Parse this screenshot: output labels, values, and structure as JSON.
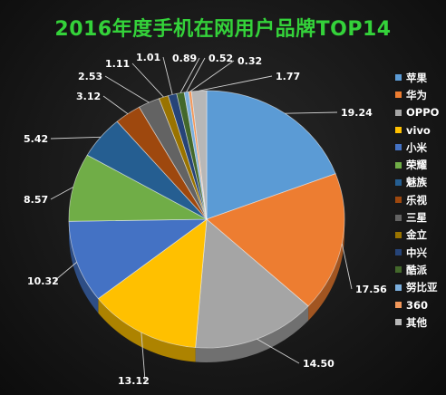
{
  "title": "2016年度手机在网用户品牌TOP14",
  "chart_data": {
    "type": "pie",
    "title": "2016年度手机在网用户品牌TOP14",
    "legend_position": "right",
    "style": "3d",
    "categories": [
      "苹果",
      "华为",
      "OPPO",
      "vivo",
      "小米",
      "荣耀",
      "魅族",
      "乐视",
      "三星",
      "金立",
      "中兴",
      "酷派",
      "努比亚",
      "360",
      "其他"
    ],
    "values": [
      19.24,
      17.56,
      14.5,
      13.12,
      10.32,
      8.57,
      5.42,
      3.12,
      2.53,
      1.11,
      1.01,
      0.89,
      0.52,
      0.32,
      1.77
    ],
    "labels": [
      "19.24",
      "17.56",
      "14.50",
      "13.12",
      "10.32",
      "8.57",
      "5.42",
      "3.12",
      "2.53",
      "1.11",
      "1.01",
      "0.89",
      "0.52",
      "0.32",
      "1.77"
    ],
    "colors": [
      "#5b9bd5",
      "#ed7d31",
      "#a5a5a5",
      "#ffc000",
      "#4472c4",
      "#70ad47",
      "#255e91",
      "#9e480e",
      "#636363",
      "#997300",
      "#264478",
      "#43682b",
      "#7cafdd",
      "#f1975a",
      "#b7b7b7"
    ]
  }
}
